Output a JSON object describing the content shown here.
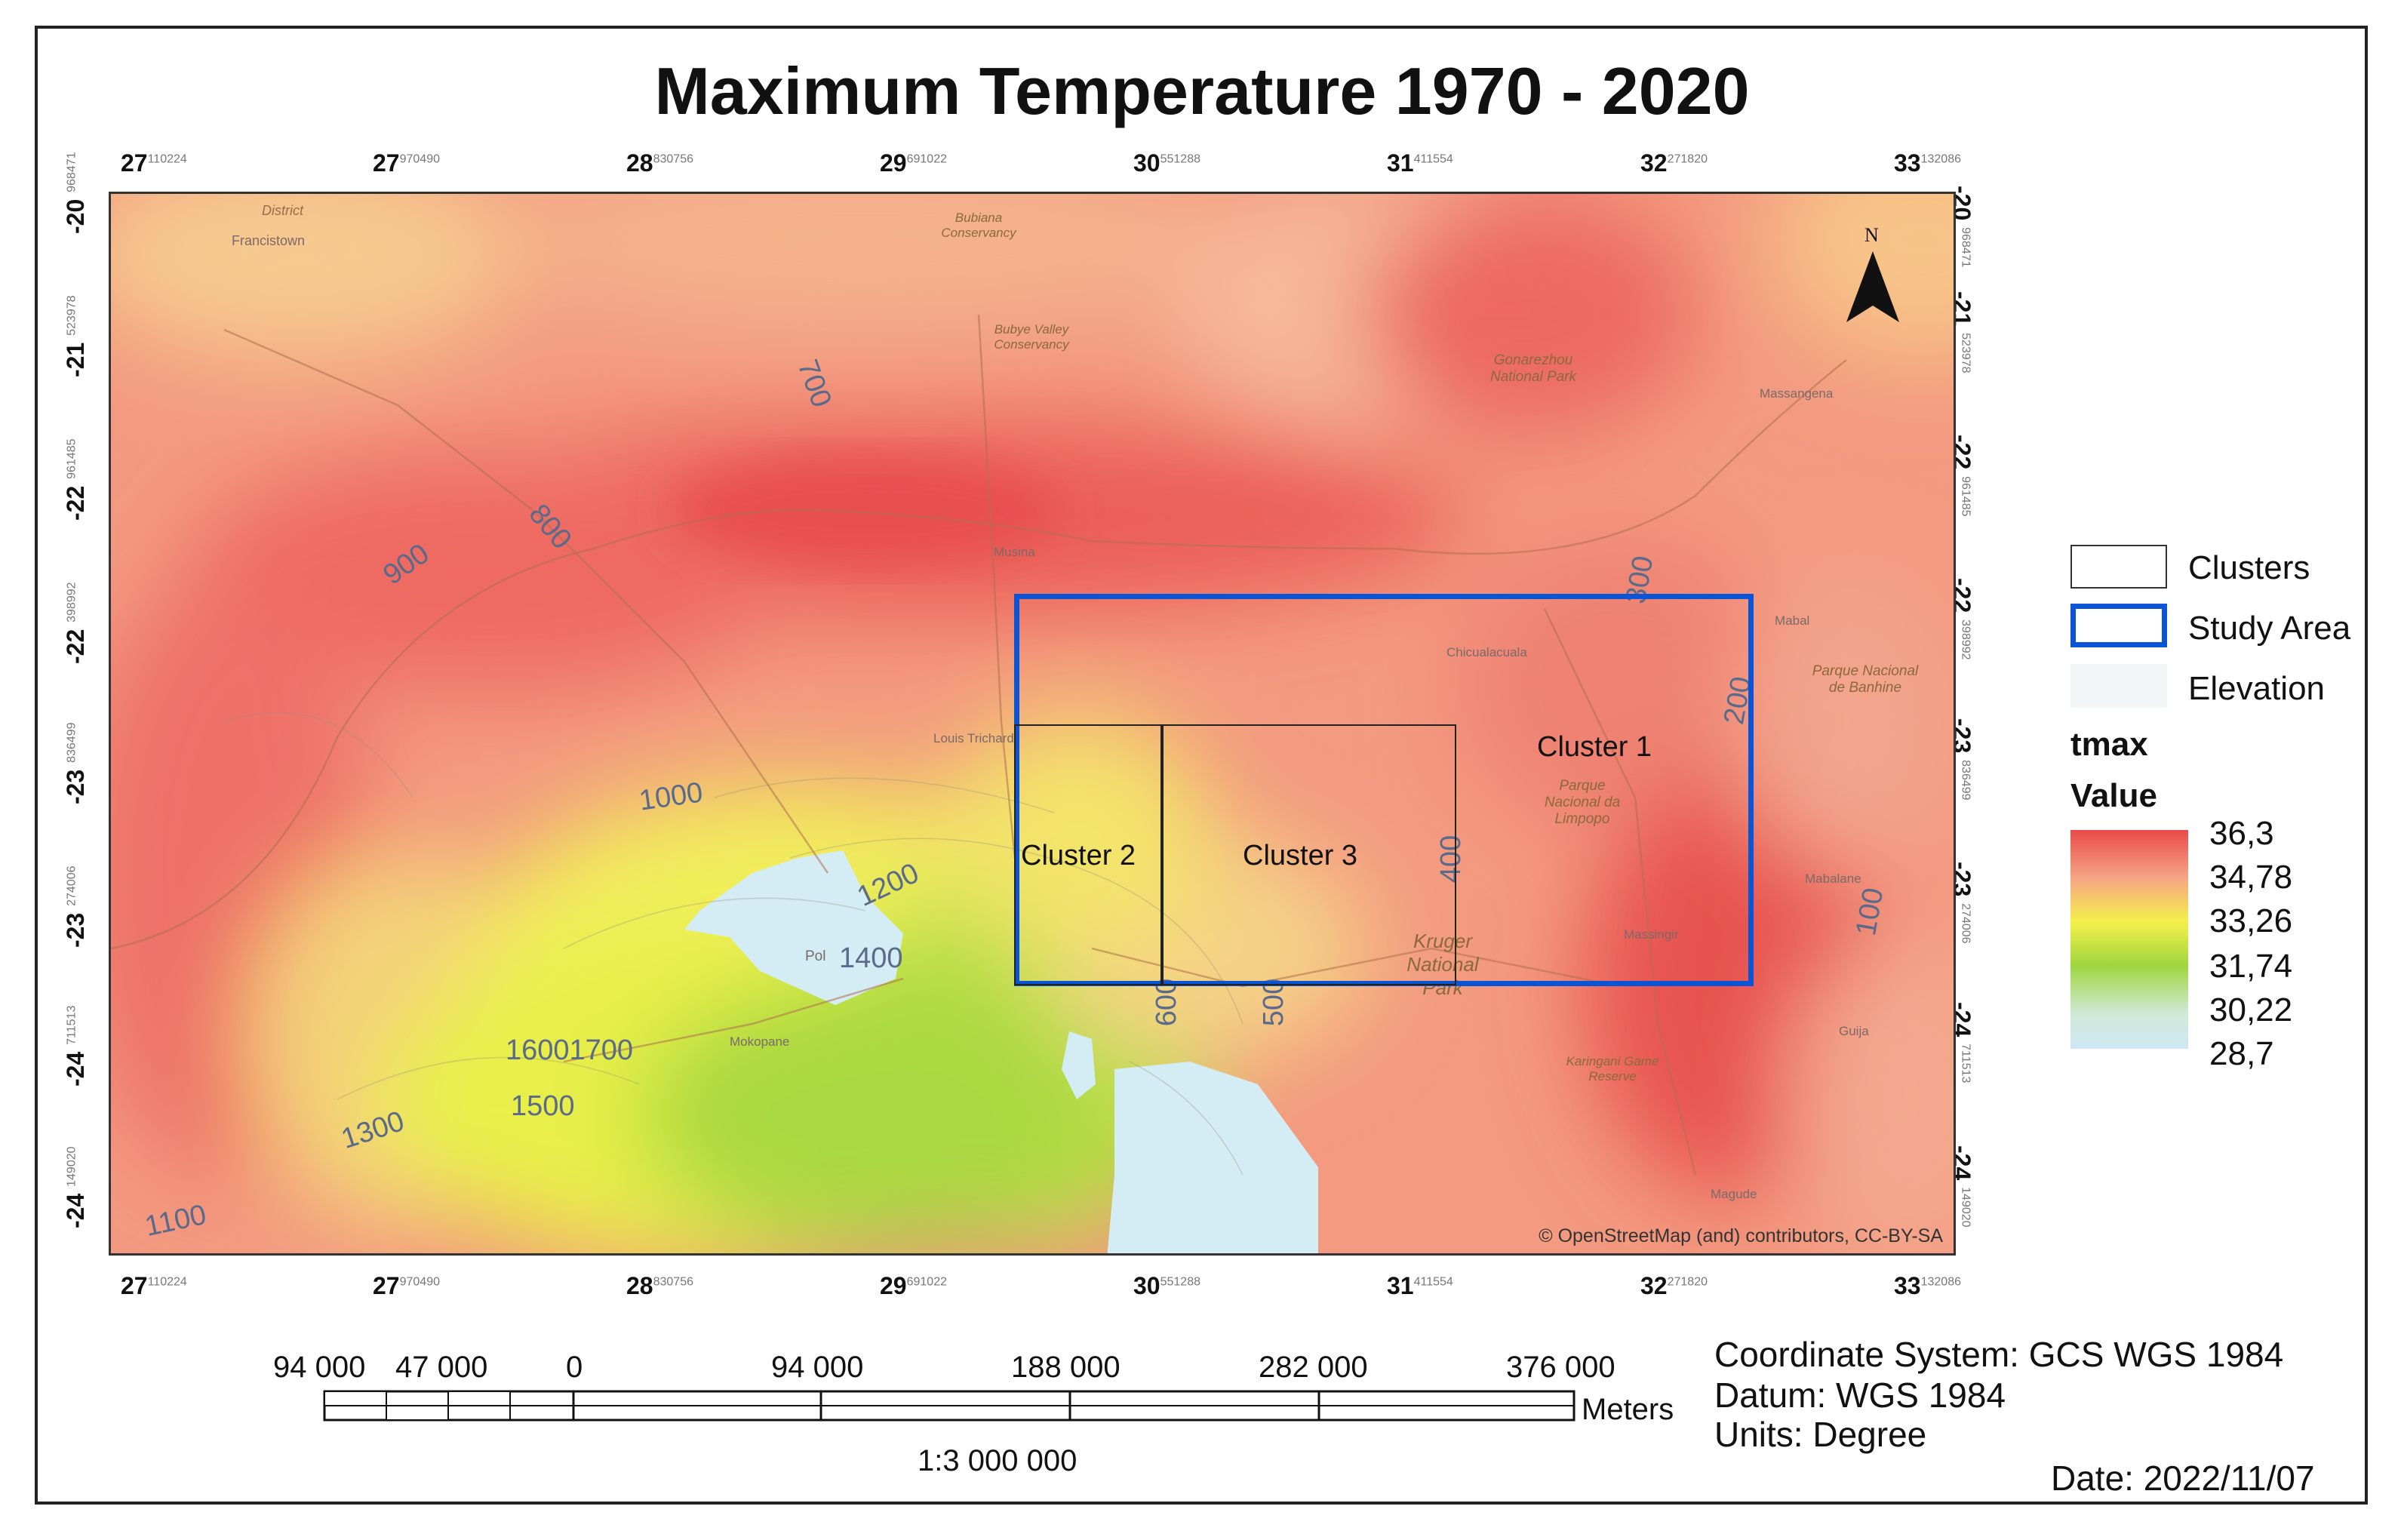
{
  "title": "Maximum Temperature 1970 - 2020",
  "axes": {
    "top": [
      {
        "deg": "27",
        "frac": "110224"
      },
      {
        "deg": "27",
        "frac": "970490"
      },
      {
        "deg": "28",
        "frac": "830756"
      },
      {
        "deg": "29",
        "frac": "691022"
      },
      {
        "deg": "30",
        "frac": "551288"
      },
      {
        "deg": "31",
        "frac": "411554"
      },
      {
        "deg": "32",
        "frac": "271820"
      },
      {
        "deg": "33",
        "frac": "132086"
      }
    ],
    "left": [
      {
        "deg": "-20",
        "frac": "968471"
      },
      {
        "deg": "-21",
        "frac": "523978"
      },
      {
        "deg": "-22",
        "frac": "961485"
      },
      {
        "deg": "-22",
        "frac": "398992"
      },
      {
        "deg": "-23",
        "frac": "836499"
      },
      {
        "deg": "-23",
        "frac": "274006"
      },
      {
        "deg": "-24",
        "frac": "711513"
      },
      {
        "deg": "-24",
        "frac": "149020"
      }
    ]
  },
  "contours": [
    "700",
    "800",
    "900",
    "1000",
    "1200",
    "1400",
    "16001700",
    "1500",
    "1300",
    "1100",
    "600",
    "500",
    "400",
    "300",
    "200",
    "100"
  ],
  "map_labels": {
    "district": "District",
    "francistown": "Francistown",
    "bubiana": "Bubiana Conservancy",
    "bubye": "Bubye Valley Conservancy",
    "gonarezhou": "Gonarezhou National Park",
    "massangena": "Massangena",
    "musina": "Musina",
    "chicualacuala": "Chicualacuala",
    "mabal": "Mabal",
    "banhine": "Parque Nacional de Banhine",
    "louis": "Louis Trichardt",
    "limpopo": "Parque Nacional da Limpopo",
    "mabalane": "Mabalane",
    "massingir": "Massingir",
    "kruger": "Kruger National Park",
    "polokwane": "Pol",
    "mokopane": "Mokopane",
    "karingani": "Karingani Game Reserve",
    "guija": "Guija",
    "magude": "Magude"
  },
  "clusters": {
    "c1": "Cluster 1",
    "c2": "Cluster 2",
    "c3": "Cluster 3"
  },
  "north_label": "N",
  "attribution": "© OpenStreetMap (and) contributors, CC-BY-SA",
  "legend": {
    "clusters": "Clusters",
    "study_area": "Study Area",
    "elevation": "Elevation",
    "field": "tmax",
    "value_label": "Value",
    "values": [
      "36,3",
      "34,78",
      "33,26",
      "31,74",
      "30,22",
      "28,7"
    ],
    "ramp_colors": [
      "#ea4a4a",
      "#f6a585",
      "#f4f04a",
      "#9fd63e",
      "#cfe9d8",
      "#cfe8f4"
    ],
    "study_color": "#0a55d6"
  },
  "scale": {
    "labels": [
      "94 000",
      "47 000",
      "0",
      "94 000",
      "188 000",
      "282 000",
      "376 000"
    ],
    "unit": "Meters",
    "ratio": "1:3 000 000"
  },
  "info": {
    "cs": "Coordinate System: GCS WGS 1984",
    "datum": "Datum: WGS 1984",
    "units": "Units: Degree",
    "date": "Date: 2022/11/07"
  }
}
